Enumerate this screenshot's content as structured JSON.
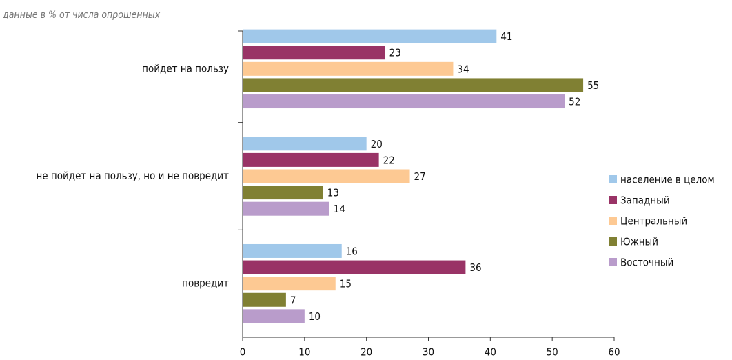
{
  "chart_data": {
    "type": "hbar",
    "subtitle": "данные в % от числа опрошенных",
    "categories": [
      "пойдет на пользу",
      "не пойдет на пользу, но и не повредит",
      "повредит"
    ],
    "series": [
      {
        "name": "население в целом",
        "color": "#a0c8ea",
        "values": [
          41,
          20,
          16
        ]
      },
      {
        "name": "Западный",
        "color": "#993366",
        "values": [
          23,
          22,
          36
        ]
      },
      {
        "name": "Центральный",
        "color": "#fdc993",
        "values": [
          34,
          27,
          15
        ]
      },
      {
        "name": "Южный",
        "color": "#808033",
        "values": [
          55,
          13,
          7
        ]
      },
      {
        "name": "Восточный",
        "color": "#b99ccb",
        "values": [
          52,
          14,
          10
        ]
      }
    ],
    "xlim": [
      0,
      60
    ],
    "xticks": [
      0,
      10,
      20,
      30,
      40,
      50,
      60
    ],
    "legend": "right"
  }
}
